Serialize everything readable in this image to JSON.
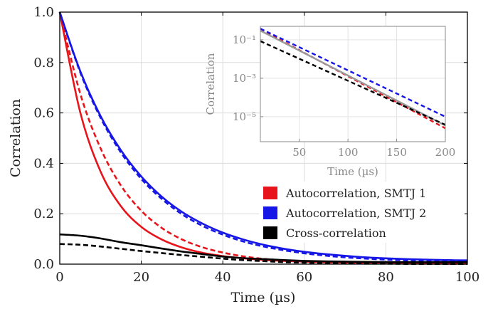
{
  "chart_data": {
    "type": "line",
    "xlabel": "Time (µs)",
    "ylabel": "Correlation",
    "xlim": [
      0,
      100
    ],
    "ylim": [
      0,
      1.0
    ],
    "x_ticks": [
      "0",
      "20",
      "40",
      "60",
      "80",
      "100"
    ],
    "y_ticks": [
      "0.0",
      "0.2",
      "0.4",
      "0.6",
      "0.8",
      "1.0"
    ],
    "grid": true,
    "legend_position": "bottom-right",
    "legend": [
      {
        "label": "Autocorrelation, SMTJ 1",
        "color": "#e8141b"
      },
      {
        "label": "Autocorrelation, SMTJ 2",
        "color": "#1616e6"
      },
      {
        "label": "Cross-correlation",
        "color": "#000000"
      }
    ],
    "x": [
      0,
      5,
      10,
      15,
      20,
      25,
      30,
      35,
      40,
      45,
      50,
      55,
      60,
      65,
      70,
      75,
      80,
      85,
      90,
      95,
      100
    ],
    "series": [
      {
        "color": "#e8141b",
        "style": "solid",
        "values": [
          1.0,
          0.604,
          0.368,
          0.23,
          0.148,
          0.098,
          0.066,
          0.045,
          0.032,
          0.023,
          0.017,
          0.013,
          0.01,
          0.008,
          0.007,
          0.006,
          0.006,
          0.005,
          0.005,
          0.005,
          0.005
        ]
      },
      {
        "color": "#e8141b",
        "style": "dashed",
        "values": [
          1.0,
          0.678,
          0.46,
          0.312,
          0.212,
          0.144,
          0.098,
          0.067,
          0.046,
          0.031,
          0.021,
          0.015,
          0.01,
          0.007,
          0.005,
          0.004,
          0.003,
          0.002,
          0.002,
          0.001,
          0.001
        ]
      },
      {
        "color": "#1616e6",
        "style": "solid",
        "values": [
          1.0,
          0.767,
          0.588,
          0.452,
          0.348,
          0.268,
          0.207,
          0.161,
          0.125,
          0.098,
          0.077,
          0.061,
          0.049,
          0.04,
          0.033,
          0.027,
          0.023,
          0.02,
          0.018,
          0.016,
          0.015
        ]
      },
      {
        "color": "#1616e6",
        "style": "dashed",
        "values": [
          1.0,
          0.762,
          0.581,
          0.443,
          0.338,
          0.259,
          0.198,
          0.152,
          0.117,
          0.09,
          0.07,
          0.055,
          0.043,
          0.034,
          0.027,
          0.022,
          0.018,
          0.015,
          0.012,
          0.011,
          0.01
        ]
      },
      {
        "color": "#000000",
        "style": "solid",
        "values": [
          0.118,
          0.113,
          0.102,
          0.087,
          0.075,
          0.062,
          0.05,
          0.04,
          0.03,
          0.024,
          0.02,
          0.016,
          0.013,
          0.011,
          0.01,
          0.009,
          0.008,
          0.008,
          0.008,
          0.008,
          0.008
        ]
      },
      {
        "color": "#000000",
        "style": "dashed",
        "values": [
          0.08,
          0.077,
          0.07,
          0.061,
          0.052,
          0.044,
          0.036,
          0.029,
          0.022,
          0.016,
          0.012,
          0.008,
          0.006,
          0.004,
          0.003,
          0.002,
          0.002,
          0.001,
          0.001,
          0.001,
          0.001
        ]
      }
    ],
    "inset": {
      "xlabel": "Time (µs)",
      "ylabel": "Correlation",
      "xlim": [
        10,
        200
      ],
      "ylim_log10": [
        -6.3,
        -0.3
      ],
      "scale": "log",
      "x_ticks": [
        "50",
        "100",
        "150",
        "200"
      ],
      "y_ticks": [
        "10⁻¹",
        "10⁻³",
        "10⁻⁵"
      ],
      "x": [
        10,
        200
      ],
      "series": [
        {
          "color": "#e8141b",
          "style": "dashed",
          "values": [
            0.35,
            2.5e-06
          ]
        },
        {
          "color": "#1616e6",
          "style": "dashed",
          "values": [
            0.38,
            1e-05
          ]
        },
        {
          "color": "#999999",
          "style": "solid",
          "values": [
            0.3,
            3.5e-06
          ]
        },
        {
          "color": "#000000",
          "style": "dashed",
          "values": [
            0.085,
            3.8e-06
          ]
        }
      ]
    }
  }
}
